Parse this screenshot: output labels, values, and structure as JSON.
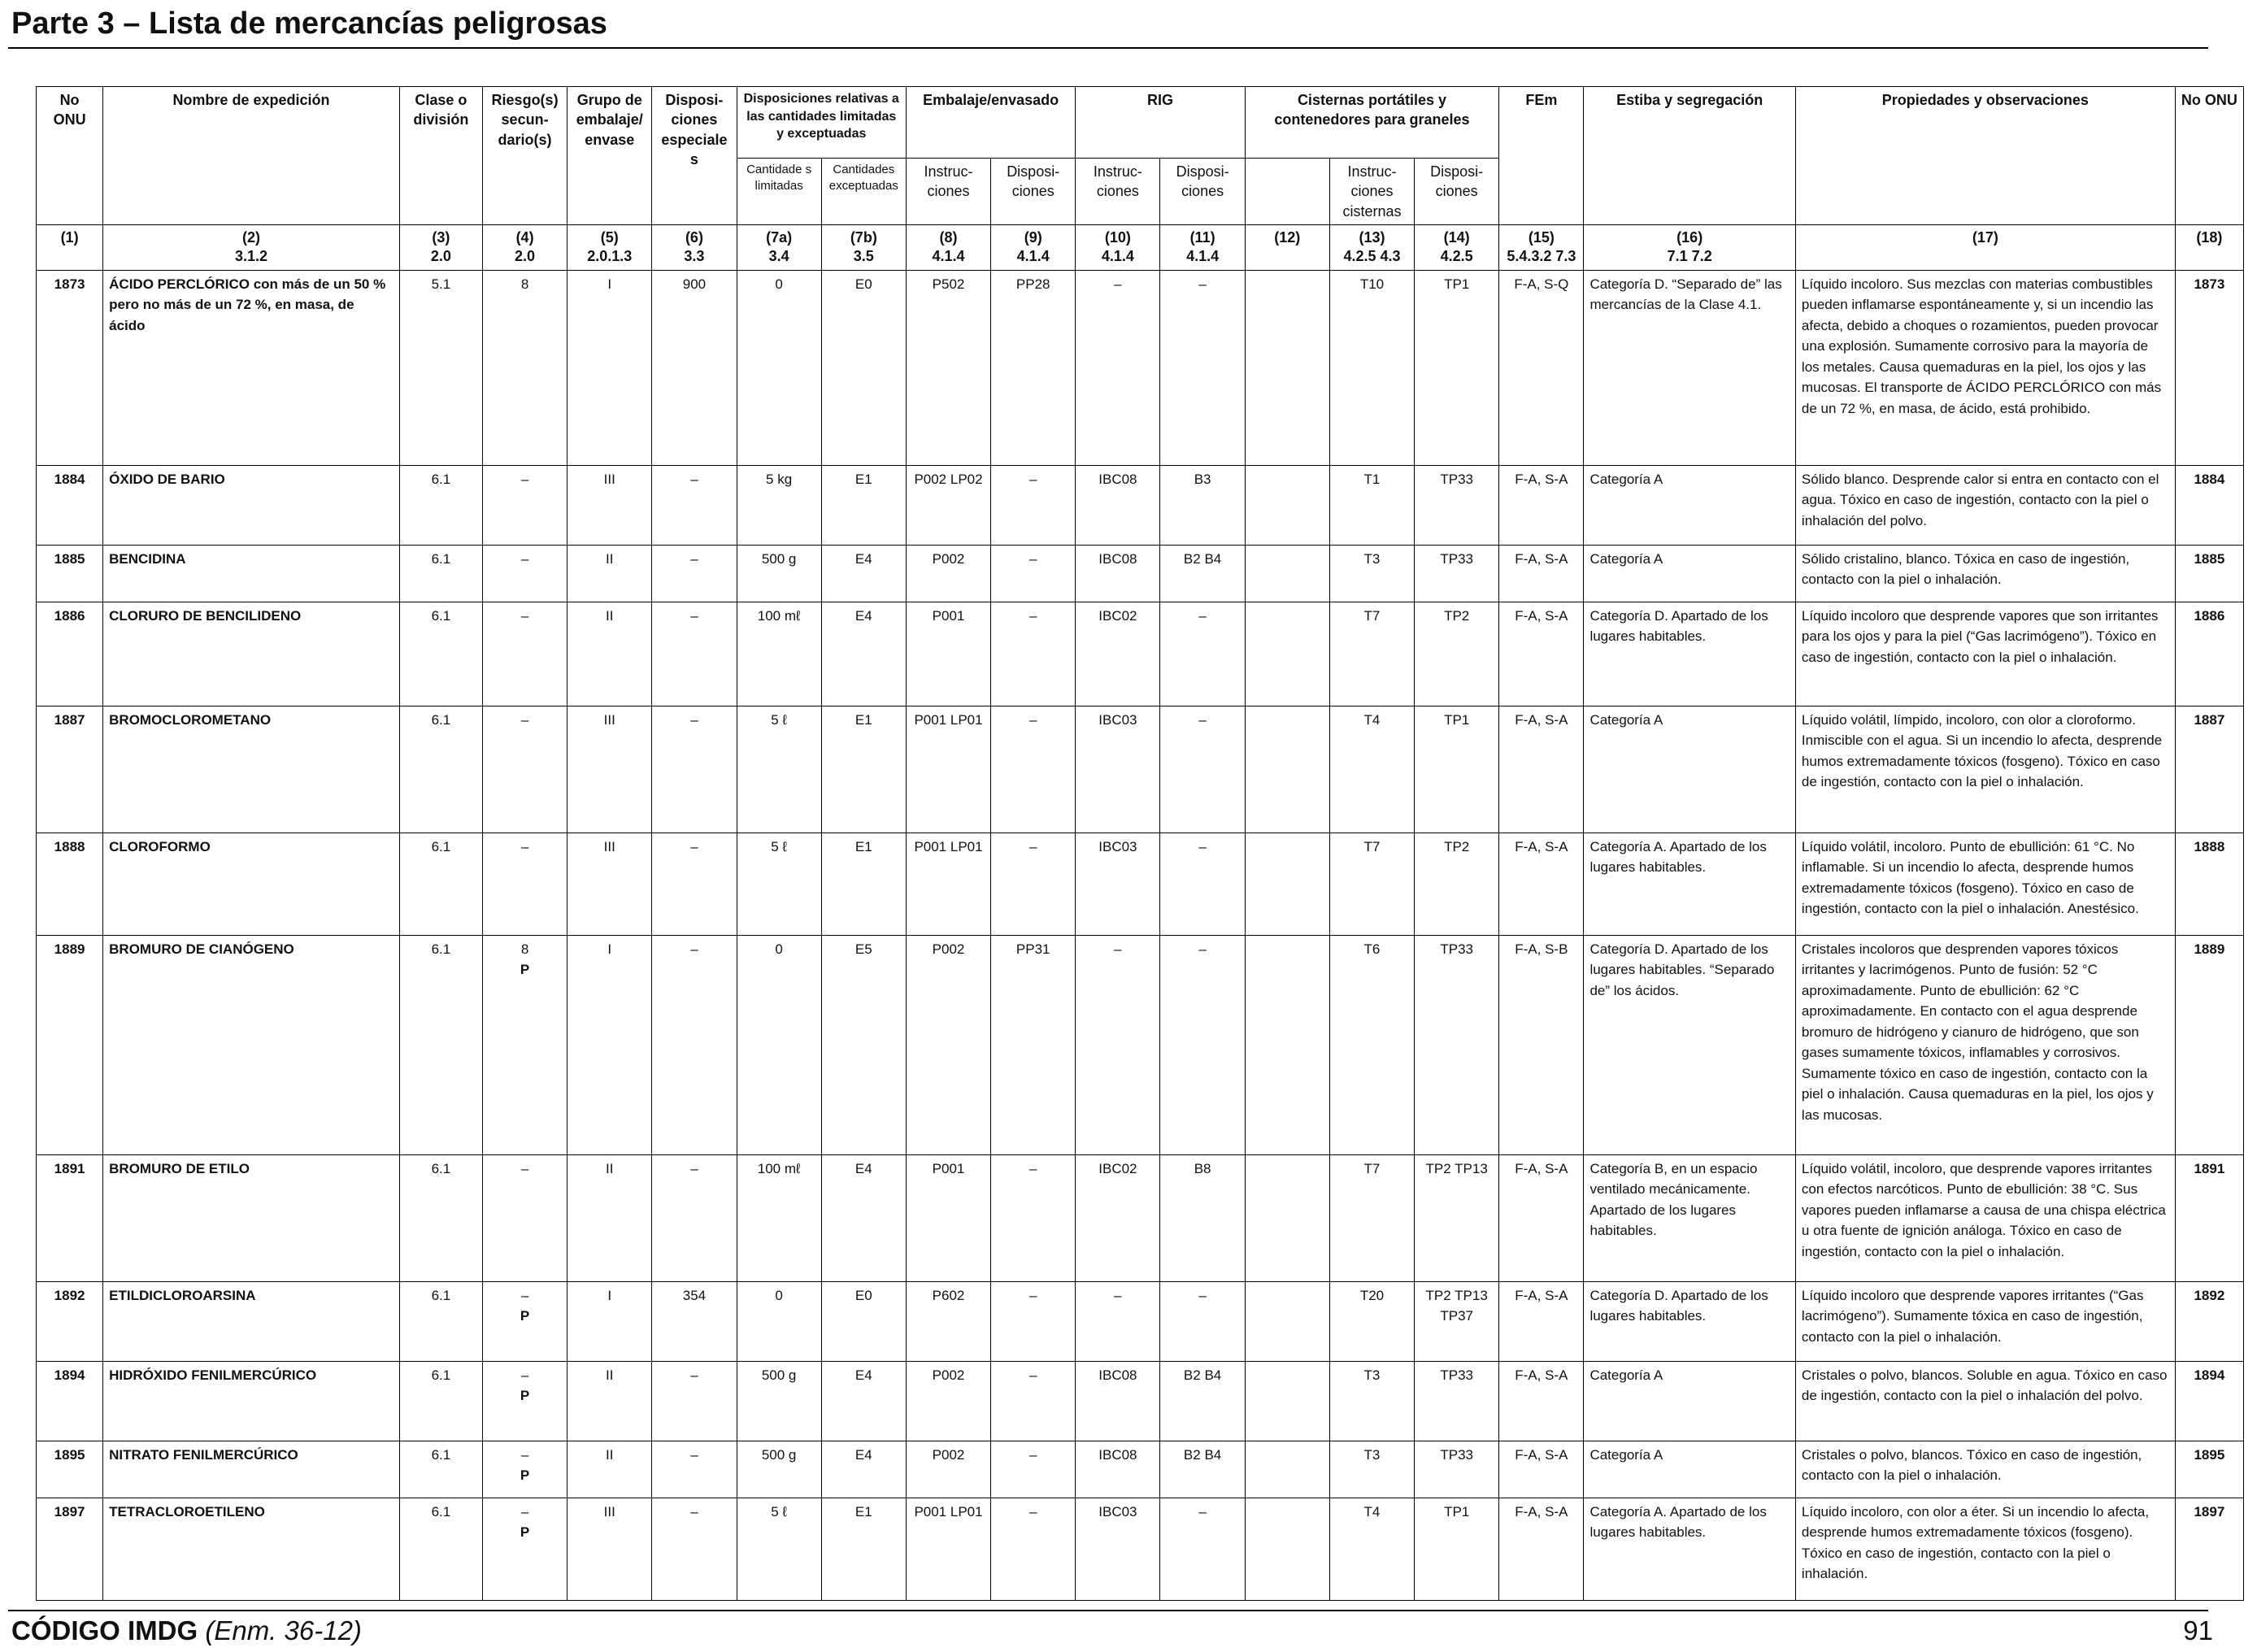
{
  "header": {
    "title": "Parte 3 – Lista de mercancías peligrosas"
  },
  "columns": {
    "no_onu": "No ONU",
    "nombre": "Nombre de expedición",
    "clase": "Clase o división",
    "riesgo": "Riesgo(s) secun-dario(s)",
    "grupo": "Grupo de embalaje/ envase",
    "disp_esp": "Disposi-ciones especiales",
    "disp_cant": "Disposiciones relativas a las cantidades limitadas y exceptuadas",
    "cant_lim": "Cantidade s limitadas",
    "cant_exc": "Cantidades exceptuadas",
    "embalaje": "Embalaje/envasado",
    "rig": "RIG",
    "cisternas": "Cisternas portátiles y contenedores para graneles",
    "instr": "Instruc-ciones",
    "disp": "Disposi-ciones",
    "instr_cist": "Instruc-ciones cisternas",
    "fem": "FEm",
    "estiba": "Estiba y segregación",
    "propiedades": "Propiedades y observaciones"
  },
  "ref_row": [
    {
      "n": "(1)",
      "r": ""
    },
    {
      "n": "(2)",
      "r": "3.1.2"
    },
    {
      "n": "(3)",
      "r": "2.0"
    },
    {
      "n": "(4)",
      "r": "2.0"
    },
    {
      "n": "(5)",
      "r": "2.0.1.3"
    },
    {
      "n": "(6)",
      "r": "3.3"
    },
    {
      "n": "(7a)",
      "r": "3.4"
    },
    {
      "n": "(7b)",
      "r": "3.5"
    },
    {
      "n": "(8)",
      "r": "4.1.4"
    },
    {
      "n": "(9)",
      "r": "4.1.4"
    },
    {
      "n": "(10)",
      "r": "4.1.4"
    },
    {
      "n": "(11)",
      "r": "4.1.4"
    },
    {
      "n": "(12)",
      "r": ""
    },
    {
      "n": "(13)",
      "r": "4.2.5 4.3"
    },
    {
      "n": "(14)",
      "r": "4.2.5"
    },
    {
      "n": "(15)",
      "r": "5.4.3.2 7.3"
    },
    {
      "n": "(16)",
      "r": "7.1 7.2"
    },
    {
      "n": "(17)",
      "r": ""
    },
    {
      "n": "(18)",
      "r": ""
    }
  ],
  "rows": [
    {
      "un": "1873",
      "name": "ÁCIDO PERCLÓRICO con más de un 50 % pero no más de un 72 %, en masa, de ácido",
      "clase": "5.1",
      "riesgo": "8",
      "p": "",
      "grupo": "I",
      "disp": "900",
      "lim": "0",
      "exc": "E0",
      "pi": "P502",
      "pd": "PP28",
      "ri": "–",
      "rd": "–",
      "c12": "",
      "ti": "T10",
      "td": "TP1",
      "fem": "F-A, S-Q",
      "estiba": "Categoría D. “Separado de” las mercancías de la Clase 4.1.",
      "prop": "Líquido incoloro. Sus mezclas con materias combustibles pueden inflamarse espontáneamente y, si un incendio las afecta, debido a choques o rozamientos, pueden provocar una explosión. Sumamente corrosivo para la mayoría de los metales. Causa quemaduras en la piel, los ojos y las mucosas. El transporte de ÁCIDO PERCLÓRICO con más de un 72 %, en masa, de ácido, está prohibido."
    },
    {
      "un": "1884",
      "name": "ÓXIDO DE BARIO",
      "clase": "6.1",
      "riesgo": "–",
      "p": "",
      "grupo": "III",
      "disp": "–",
      "lim": "5 kg",
      "exc": "E1",
      "pi": "P002 LP02",
      "pd": "–",
      "ri": "IBC08",
      "rd": "B3",
      "c12": "",
      "ti": "T1",
      "td": "TP33",
      "fem": "F-A, S-A",
      "estiba": "Categoría A",
      "prop": "Sólido blanco. Desprende calor si entra en contacto con el agua. Tóxico en caso de ingestión, contacto con la piel o inhalación del polvo."
    },
    {
      "un": "1885",
      "name": "BENCIDINA",
      "clase": "6.1",
      "riesgo": "–",
      "p": "",
      "grupo": "II",
      "disp": "–",
      "lim": "500 g",
      "exc": "E4",
      "pi": "P002",
      "pd": "–",
      "ri": "IBC08",
      "rd": "B2 B4",
      "c12": "",
      "ti": "T3",
      "td": "TP33",
      "fem": "F-A, S-A",
      "estiba": "Categoría A",
      "prop": "Sólido cristalino, blanco. Tóxica en caso de ingestión, contacto con la piel o inhalación."
    },
    {
      "un": "1886",
      "name": "CLORURO DE BENCILIDENO",
      "clase": "6.1",
      "riesgo": "–",
      "p": "",
      "grupo": "II",
      "disp": "–",
      "lim": "100 mℓ",
      "exc": "E4",
      "pi": "P001",
      "pd": "–",
      "ri": "IBC02",
      "rd": "–",
      "c12": "",
      "ti": "T7",
      "td": "TP2",
      "fem": "F-A, S-A",
      "estiba": "Categoría D. Apartado de los lugares habitables.",
      "prop": "Líquido incoloro que desprende vapores que son irritantes para los ojos y para la piel (“Gas lacrimógeno”). Tóxico en caso de ingestión, contacto con la piel o inhalación."
    },
    {
      "un": "1887",
      "name": "BROMOCLOROMETANO",
      "clase": "6.1",
      "riesgo": "–",
      "p": "",
      "grupo": "III",
      "disp": "–",
      "lim": "5 ℓ",
      "exc": "E1",
      "pi": "P001 LP01",
      "pd": "–",
      "ri": "IBC03",
      "rd": "–",
      "c12": "",
      "ti": "T4",
      "td": "TP1",
      "fem": "F-A, S-A",
      "estiba": "Categoría A",
      "prop": "Líquido volátil, límpido, incoloro, con olor a cloroformo. Inmiscible con el agua. Si un incendio lo afecta, desprende humos extremadamente tóxicos (fosgeno). Tóxico en caso de ingestión, contacto con la piel o inhalación."
    },
    {
      "un": "1888",
      "name": "CLOROFORMO",
      "clase": "6.1",
      "riesgo": "–",
      "p": "",
      "grupo": "III",
      "disp": "–",
      "lim": "5 ℓ",
      "exc": "E1",
      "pi": "P001 LP01",
      "pd": "–",
      "ri": "IBC03",
      "rd": "–",
      "c12": "",
      "ti": "T7",
      "td": "TP2",
      "fem": "F-A, S-A",
      "estiba": "Categoría A. Apartado de los lugares habitables.",
      "prop": "Líquido volátil, incoloro. Punto de ebullición: 61 °C. No inflamable. Si un incendio lo afecta, desprende humos extremadamente tóxicos (fosgeno). Tóxico en caso de ingestión, contacto con la piel o inhalación. Anestésico."
    },
    {
      "un": "1889",
      "name": "BROMURO DE CIANÓGENO",
      "clase": "6.1",
      "riesgo": "8",
      "p": "P",
      "grupo": "I",
      "disp": "–",
      "lim": "0",
      "exc": "E5",
      "pi": "P002",
      "pd": "PP31",
      "ri": "–",
      "rd": "–",
      "c12": "",
      "ti": "T6",
      "td": "TP33",
      "fem": "F-A, S-B",
      "estiba": "Categoría D. Apartado de los lugares habitables. “Separado de” los ácidos.",
      "prop": "Cristales incoloros que desprenden vapores tóxicos irritantes y lacrimógenos. Punto de fusión: 52 °C aproximadamente. Punto de ebullición: 62 °C aproximadamente. En contacto con el agua desprende bromuro de hidrógeno y cianuro de hidrógeno, que son gases sumamente tóxicos, inflamables y corrosivos. Sumamente tóxico en caso de ingestión, contacto con la piel o inhalación. Causa quemaduras en la piel, los ojos y las mucosas."
    },
    {
      "un": "1891",
      "name": "BROMURO DE ETILO",
      "clase": "6.1",
      "riesgo": "–",
      "p": "",
      "grupo": "II",
      "disp": "–",
      "lim": "100 mℓ",
      "exc": "E4",
      "pi": "P001",
      "pd": "–",
      "ri": "IBC02",
      "rd": "B8",
      "c12": "",
      "ti": "T7",
      "td": "TP2 TP13",
      "fem": "F-A, S-A",
      "estiba": "Categoría B, en un espacio ventilado mecánicamente. Apartado de los lugares habitables.",
      "prop": "Líquido volátil, incoloro, que desprende vapores irritantes con efectos narcóticos. Punto de ebullición: 38 °C. Sus vapores pueden inflamarse a causa de una chispa eléctrica u otra fuente de ignición análoga. Tóxico en caso de ingestión, contacto con la piel o inhalación."
    },
    {
      "un": "1892",
      "name": "ETILDICLOROARSINA",
      "clase": "6.1",
      "riesgo": "–",
      "p": "P",
      "grupo": "I",
      "disp": "354",
      "lim": "0",
      "exc": "E0",
      "pi": "P602",
      "pd": "–",
      "ri": "–",
      "rd": "–",
      "c12": "",
      "ti": "T20",
      "td": "TP2 TP13 TP37",
      "fem": "F-A, S-A",
      "estiba": "Categoría D. Apartado de los lugares habitables.",
      "prop": "Líquido incoloro que desprende vapores irritantes (“Gas lacrimógeno”). Sumamente tóxica en caso de ingestión, contacto con la piel o inhalación."
    },
    {
      "un": "1894",
      "name": "HIDRÓXIDO FENILMERCÚRICO",
      "clase": "6.1",
      "riesgo": "–",
      "p": "P",
      "grupo": "II",
      "disp": "–",
      "lim": "500 g",
      "exc": "E4",
      "pi": "P002",
      "pd": "–",
      "ri": "IBC08",
      "rd": "B2 B4",
      "c12": "",
      "ti": "T3",
      "td": "TP33",
      "fem": "F-A, S-A",
      "estiba": "Categoría A",
      "prop": "Cristales o polvo, blancos. Soluble en agua. Tóxico en caso de ingestión, contacto con la piel o inhalación del polvo."
    },
    {
      "un": "1895",
      "name": "NITRATO FENILMERCÚRICO",
      "clase": "6.1",
      "riesgo": "–",
      "p": "P",
      "grupo": "II",
      "disp": "–",
      "lim": "500 g",
      "exc": "E4",
      "pi": "P002",
      "pd": "–",
      "ri": "IBC08",
      "rd": "B2 B4",
      "c12": "",
      "ti": "T3",
      "td": "TP33",
      "fem": "F-A, S-A",
      "estiba": "Categoría A",
      "prop": "Cristales o polvo, blancos. Tóxico en caso de ingestión, contacto con la piel o inhalación."
    },
    {
      "un": "1897",
      "name": "TETRACLOROETILENO",
      "clase": "6.1",
      "riesgo": "–",
      "p": "P",
      "grupo": "III",
      "disp": "–",
      "lim": "5 ℓ",
      "exc": "E1",
      "pi": "P001 LP01",
      "pd": "–",
      "ri": "IBC03",
      "rd": "–",
      "c12": "",
      "ti": "T4",
      "td": "TP1",
      "fem": "F-A, S-A",
      "estiba": "Categoría A. Apartado de los lugares habitables.",
      "prop": "Líquido incoloro, con olor a éter. Si un incendio lo afecta, desprende humos extremadamente tóxicos (fosgeno). Tóxico en caso de ingestión, contacto con la piel o inhalación."
    }
  ],
  "footer": {
    "code": "CÓDIGO IMDG",
    "edition": "(Enm. 36-12)",
    "page": "91"
  }
}
